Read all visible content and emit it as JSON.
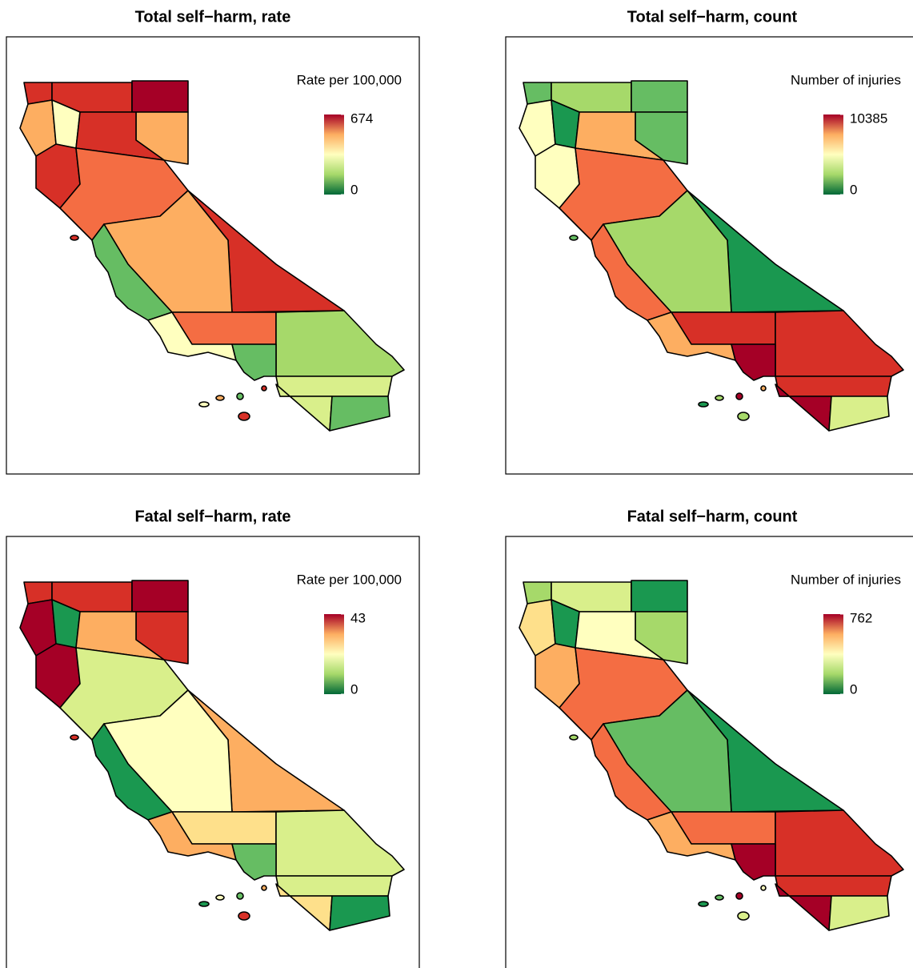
{
  "panels": [
    {
      "title": "Total self−harm, rate",
      "legend_title": "Rate per 100,000",
      "legend_ticks": [
        0,
        674
      ]
    },
    {
      "title": "Total self−harm, count",
      "legend_title": "Number of injuries",
      "legend_ticks": [
        0,
        10385
      ]
    },
    {
      "title": "Fatal self−harm, rate",
      "legend_title": "Rate per 100,000",
      "legend_ticks": [
        0,
        43
      ]
    },
    {
      "title": "Fatal self−harm, count",
      "legend_title": "Number of injuries",
      "legend_ticks": [
        0,
        762
      ]
    }
  ]
}
